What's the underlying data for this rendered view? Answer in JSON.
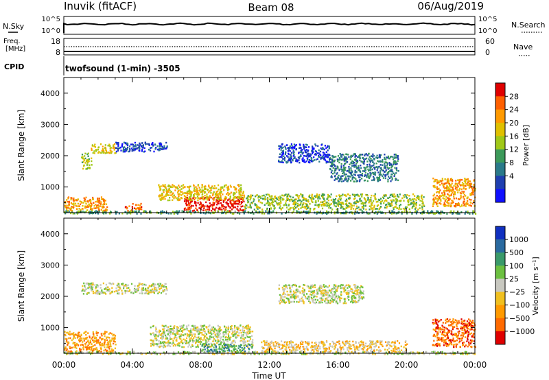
{
  "header": {
    "station": "Inuvik (fitACF)",
    "beam": "Beam 08",
    "date": "06/Aug/2019"
  },
  "nsky_panel": {
    "left_label": "N.Sky",
    "right_label": "N.Search",
    "ytick_top": "10^5",
    "ytick_bottom": "10^0"
  },
  "freq_panel": {
    "left_label": "Freq.",
    "unit": "[MHz]",
    "right_label": "Nave",
    "left_ticks": [
      "18",
      "8"
    ],
    "right_ticks": [
      "60",
      "0"
    ]
  },
  "cpid": {
    "label": "CPID",
    "text": "twofsound (1-min) -3505"
  },
  "power_colorbar": {
    "label": "Power [dB]",
    "ticks": [
      "28",
      "24",
      "20",
      "16",
      "12",
      "8",
      "4"
    ],
    "colors": [
      "#e00000",
      "#ff6000",
      "#ff9a00",
      "#e0c000",
      "#a0c818",
      "#3c9a5a",
      "#2a7a8a",
      "#1f3fb0",
      "#1010ff"
    ]
  },
  "velocity_colorbar": {
    "label": "Velocity [m s⁻¹]",
    "ticks": [
      "1000",
      "500",
      "100",
      "25",
      "−25",
      "−100",
      "−500",
      "−1000"
    ],
    "colors": [
      "#1030c0",
      "#2a6aa0",
      "#3a9a6a",
      "#6cc040",
      "#c8c8c0",
      "#f0c020",
      "#ff9a00",
      "#ff6a00",
      "#e00000"
    ]
  },
  "xaxis": {
    "label": "Time UT"
  },
  "chart_data": [
    {
      "type": "heatmap",
      "name": "power",
      "ylabel": "Slant Range [km]",
      "xticks": [
        "00:00",
        "04:00",
        "08:00",
        "12:00",
        "16:00",
        "20:00",
        "00:00"
      ],
      "yticks": [
        1000,
        2000,
        3000,
        4000
      ],
      "xlim": [
        0,
        24
      ],
      "ylim": [
        180,
        4500
      ],
      "echo_regions": [
        {
          "t0": 0,
          "t1": 24,
          "r0": 180,
          "r1": 260,
          "level": 5
        },
        {
          "t0": 0,
          "t1": 2.5,
          "r0": 260,
          "r1": 700,
          "level": 2
        },
        {
          "t0": 3.5,
          "t1": 4.5,
          "r0": 260,
          "r1": 500,
          "level": 1
        },
        {
          "t0": 7.0,
          "t1": 10.5,
          "r0": 260,
          "r1": 700,
          "level": 0
        },
        {
          "t0": 5.5,
          "t1": 10.5,
          "r0": 600,
          "r1": 1100,
          "level": 3
        },
        {
          "t0": 10.5,
          "t1": 21.0,
          "r0": 300,
          "r1": 800,
          "level": 4
        },
        {
          "t0": 12.5,
          "t1": 15.5,
          "r0": 1800,
          "r1": 2400,
          "level": 7
        },
        {
          "t0": 15.5,
          "t1": 19.5,
          "r0": 1200,
          "r1": 2100,
          "level": 6
        },
        {
          "t0": 1.5,
          "t1": 3.0,
          "r0": 2100,
          "r1": 2400,
          "level": 3
        },
        {
          "t0": 1.0,
          "t1": 1.6,
          "r0": 1600,
          "r1": 2100,
          "level": 4
        },
        {
          "t0": 3.0,
          "t1": 6.0,
          "r0": 2150,
          "r1": 2450,
          "level": 7
        },
        {
          "t0": 21.5,
          "t1": 24.0,
          "r0": 400,
          "r1": 1300,
          "level": 2
        }
      ]
    },
    {
      "type": "heatmap",
      "name": "velocity",
      "ylabel": "Slant Range [km]",
      "xticks": [
        "00:00",
        "04:00",
        "08:00",
        "12:00",
        "16:00",
        "20:00",
        "00:00"
      ],
      "yticks": [
        1000,
        2000,
        3000,
        4000
      ],
      "xlim": [
        0,
        24
      ],
      "ylim": [
        180,
        4500
      ],
      "echo_regions": [
        {
          "t0": 0,
          "t1": 24,
          "r0": 180,
          "r1": 260,
          "level": 4
        },
        {
          "t0": 0,
          "t1": 3.0,
          "r0": 260,
          "r1": 900,
          "level": 6
        },
        {
          "t0": 5.0,
          "t1": 11.0,
          "r0": 400,
          "r1": 1100,
          "level": 4
        },
        {
          "t0": 8.0,
          "t1": 11.0,
          "r0": 260,
          "r1": 500,
          "level": 2
        },
        {
          "t0": 11.5,
          "t1": 20.0,
          "r0": 260,
          "r1": 600,
          "level": 5
        },
        {
          "t0": 12.5,
          "t1": 17.5,
          "r0": 1800,
          "r1": 2400,
          "level": 4
        },
        {
          "t0": 1.0,
          "t1": 6.0,
          "r0": 2100,
          "r1": 2450,
          "level": 4
        },
        {
          "t0": 21.5,
          "t1": 24.0,
          "r0": 400,
          "r1": 1300,
          "level": 7
        }
      ]
    }
  ]
}
